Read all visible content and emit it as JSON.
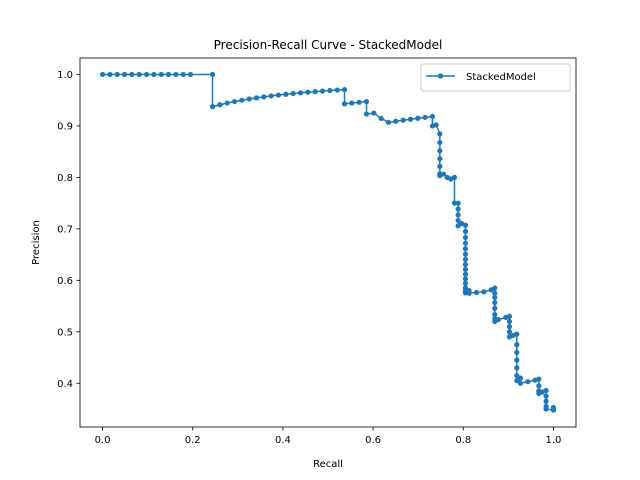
{
  "chart_data": {
    "type": "line",
    "title": "Precision-Recall Curve - StackedModel",
    "xlabel": "Recall",
    "ylabel": "Precision",
    "xlim": [
      -0.05,
      1.05
    ],
    "ylim": [
      0.315,
      1.032
    ],
    "xticks": [
      "0.0",
      "0.2",
      "0.4",
      "0.6",
      "0.8",
      "1.0"
    ],
    "yticks": [
      "0.4",
      "0.5",
      "0.6",
      "0.7",
      "0.8",
      "0.9",
      "1.0"
    ],
    "grid": false,
    "legend": "top-right",
    "line_color": "#1f77b4",
    "series": [
      {
        "name": "StackedModel",
        "x": [
          0.0,
          0.0163,
          0.0325,
          0.0488,
          0.065,
          0.0813,
          0.0976,
          0.1138,
          0.1301,
          0.1463,
          0.1626,
          0.1789,
          0.1951,
          0.2439,
          0.2439,
          0.2602,
          0.2764,
          0.2927,
          0.3089,
          0.3252,
          0.3415,
          0.3577,
          0.374,
          0.3902,
          0.4065,
          0.4228,
          0.439,
          0.4553,
          0.4715,
          0.4878,
          0.5041,
          0.5203,
          0.5366,
          0.5366,
          0.5528,
          0.5691,
          0.5854,
          0.5854,
          0.6016,
          0.6179,
          0.6341,
          0.6504,
          0.6667,
          0.6829,
          0.6992,
          0.7154,
          0.7317,
          0.7317,
          0.7398,
          0.748,
          0.748,
          0.748,
          0.748,
          0.748,
          0.748,
          0.748,
          0.748,
          0.7561,
          0.7642,
          0.7724,
          0.7805,
          0.7805,
          0.7886,
          0.7886,
          0.7886,
          0.7886,
          0.7886,
          0.7967,
          0.8049,
          0.8049,
          0.8049,
          0.8049,
          0.8049,
          0.8049,
          0.8049,
          0.8049,
          0.8049,
          0.8049,
          0.8049,
          0.8049,
          0.8049,
          0.8049,
          0.8049,
          0.8049,
          0.8049,
          0.8049,
          0.8049,
          0.8049,
          0.813,
          0.813,
          0.8293,
          0.8455,
          0.8618,
          0.8699,
          0.8699,
          0.8699,
          0.8699,
          0.8699,
          0.8699,
          0.8699,
          0.8699,
          0.878,
          0.8943,
          0.9024,
          0.9024,
          0.9024,
          0.9024,
          0.9024,
          0.9106,
          0.9187,
          0.9187,
          0.9187,
          0.9187,
          0.9187,
          0.9187,
          0.9187,
          0.9268,
          0.9268,
          0.9431,
          0.9593,
          0.9675,
          0.9675,
          0.9675,
          0.9675,
          0.9756,
          0.9837,
          0.9837,
          0.9837,
          0.9837,
          0.9837,
          1.0,
          1.0,
          1.0
        ],
        "y": [
          1.0,
          1.0,
          1.0,
          1.0,
          1.0,
          1.0,
          1.0,
          1.0,
          1.0,
          1.0,
          1.0,
          1.0,
          1.0,
          1.0,
          0.9375,
          0.9412,
          0.9444,
          0.9474,
          0.95,
          0.9524,
          0.9545,
          0.9565,
          0.9583,
          0.96,
          0.9615,
          0.963,
          0.9643,
          0.9655,
          0.9667,
          0.9677,
          0.9688,
          0.9697,
          0.9706,
          0.9429,
          0.9444,
          0.9459,
          0.9474,
          0.9231,
          0.925,
          0.9146,
          0.907,
          0.9091,
          0.9111,
          0.913,
          0.9149,
          0.9167,
          0.9184,
          0.9,
          0.902,
          0.8846,
          0.8679,
          0.8519,
          0.8364,
          0.8214,
          0.807,
          0.805,
          0.8033,
          0.8065,
          0.8,
          0.7969,
          0.8,
          0.75,
          0.75,
          0.7385,
          0.7273,
          0.7164,
          0.7059,
          0.7101,
          0.7071,
          0.695,
          0.6833,
          0.6721,
          0.6613,
          0.6508,
          0.6406,
          0.6308,
          0.6212,
          0.6119,
          0.6029,
          0.5942,
          0.5857,
          0.5775,
          0.5775,
          0.58,
          0.5755,
          0.577,
          0.578,
          0.579,
          0.58,
          0.575,
          0.5763,
          0.5777,
          0.5816,
          0.585,
          0.575,
          0.567,
          0.5567,
          0.5455,
          0.5333,
          0.5253,
          0.52,
          0.5238,
          0.528,
          0.53,
          0.52,
          0.51,
          0.5,
          0.49,
          0.493,
          0.4954,
          0.475,
          0.46,
          0.445,
          0.43,
          0.415,
          0.405,
          0.41,
          0.4,
          0.403,
          0.406,
          0.408,
          0.395,
          0.385,
          0.38,
          0.383,
          0.386,
          0.375,
          0.365,
          0.355,
          0.35,
          0.348,
          0.353,
          0.348
        ]
      }
    ]
  }
}
